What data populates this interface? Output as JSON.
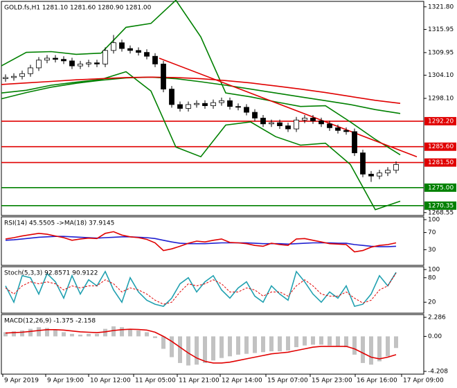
{
  "chart_data": [
    {
      "type": "candlestick",
      "title": "GOLD.fs,H1  1281.10 1281.60 1280.90 1281.00",
      "xlim": [
        0,
        152.5
      ],
      "ylim": [
        1267.8,
        1323.2
      ],
      "yticks": [
        {
          "value": 1321.8,
          "label": "1321.80"
        },
        {
          "value": 1315.95,
          "label": "1315.95"
        },
        {
          "value": 1309.95,
          "label": "1309.95"
        },
        {
          "value": 1304.1,
          "label": "1304.10"
        },
        {
          "value": 1298.1,
          "label": "1298.10"
        },
        {
          "value": 1268.55,
          "label": "1268.55"
        }
      ],
      "candles": {
        "x": [
          1.5,
          4.5,
          7.5,
          10.5,
          13.5,
          16.5,
          19.5,
          22.5,
          25.5,
          28.5,
          31.5,
          34.5,
          37.5,
          40.5,
          43.5,
          46.5,
          49.5,
          52.5,
          55.5,
          58.5,
          61.5,
          64.5,
          67.5,
          70.5,
          73.5,
          76.5,
          79.5,
          82.5,
          85.5,
          88.5,
          91.5,
          94.5,
          97.5,
          100.5,
          103.5,
          106.5,
          109.5,
          112.5,
          115.5,
          118.5,
          121.5,
          124.5,
          127.5,
          130.5,
          133.5,
          136.5,
          139.5,
          142.5
        ],
        "open": [
          1303.2,
          1303.5,
          1303.8,
          1304.5,
          1306.0,
          1308.0,
          1308.5,
          1308.2,
          1307.8,
          1306.5,
          1307.0,
          1307.3,
          1307.0,
          1310.5,
          1312.5,
          1311.0,
          1310.5,
          1310.0,
          1309.0,
          1307.0,
          1300.5,
          1296.5,
          1295.5,
          1296.5,
          1296.8,
          1296.2,
          1297.0,
          1297.5,
          1296.0,
          1295.8,
          1294.5,
          1293.0,
          1291.5,
          1291.8,
          1291.0,
          1290.2,
          1292.5,
          1293.0,
          1292.3,
          1291.5,
          1290.5,
          1289.8,
          1289.5,
          1284.0,
          1278.5,
          1278.0,
          1278.8,
          1279.5
        ],
        "high": [
          1304.3,
          1304.6,
          1305.3,
          1306.8,
          1308.8,
          1309.3,
          1309.3,
          1309.0,
          1308.6,
          1307.8,
          1308.1,
          1308.1,
          1311.3,
          1314.5,
          1313.3,
          1311.8,
          1311.3,
          1310.8,
          1309.8,
          1307.8,
          1301.3,
          1297.3,
          1297.3,
          1297.6,
          1297.6,
          1297.8,
          1298.3,
          1298.3,
          1296.8,
          1296.6,
          1295.3,
          1293.8,
          1292.6,
          1292.6,
          1291.8,
          1293.3,
          1293.8,
          1293.8,
          1293.1,
          1292.3,
          1291.3,
          1290.6,
          1290.3,
          1284.8,
          1279.3,
          1279.6,
          1280.3,
          1281.8
        ],
        "low": [
          1302.4,
          1302.7,
          1303.0,
          1303.7,
          1305.2,
          1307.2,
          1307.4,
          1307.0,
          1305.7,
          1305.7,
          1306.2,
          1306.2,
          1306.2,
          1309.7,
          1310.2,
          1309.7,
          1309.2,
          1308.2,
          1306.2,
          1299.7,
          1295.7,
          1294.7,
          1294.7,
          1295.7,
          1295.4,
          1295.4,
          1296.2,
          1295.2,
          1295.0,
          1293.7,
          1292.2,
          1290.7,
          1290.7,
          1290.2,
          1289.4,
          1289.4,
          1291.7,
          1291.5,
          1290.7,
          1289.7,
          1289.0,
          1288.7,
          1283.2,
          1277.7,
          1276.5,
          1277.2,
          1278.0,
          1278.7
        ],
        "close": [
          1303.5,
          1303.8,
          1304.5,
          1306.0,
          1308.0,
          1308.5,
          1308.2,
          1307.8,
          1306.5,
          1307.0,
          1307.3,
          1307.0,
          1310.5,
          1312.5,
          1311.0,
          1310.5,
          1310.0,
          1309.0,
          1307.0,
          1300.5,
          1296.5,
          1295.5,
          1296.5,
          1296.8,
          1296.2,
          1297.0,
          1297.5,
          1296.0,
          1295.8,
          1294.5,
          1293.0,
          1291.5,
          1291.8,
          1291.0,
          1290.2,
          1292.5,
          1293.0,
          1292.3,
          1291.5,
          1290.5,
          1289.8,
          1289.5,
          1284.0,
          1278.5,
          1278.0,
          1278.8,
          1279.5,
          1281.0
        ]
      },
      "series": [
        {
          "color": "#008000",
          "style": "line",
          "x": [
            0,
            9,
            18,
            27,
            36,
            45,
            54,
            63,
            72,
            81,
            90,
            99,
            108,
            117,
            126,
            135,
            144
          ],
          "values": [
            1306.5,
            1310.0,
            1310.2,
            1309.5,
            1309.8,
            1316.5,
            1317.5,
            1323.5,
            1314.0,
            1299.5,
            1298.5,
            1297.2,
            1296.0,
            1296.2,
            1292.0,
            1287.5,
            1283.5
          ]
        },
        {
          "color": "#008000",
          "style": "line",
          "x": [
            0,
            9,
            18,
            27,
            36,
            45,
            54,
            63,
            72,
            81,
            90,
            99,
            108,
            117,
            126,
            135,
            144
          ],
          "values": [
            1299.5,
            1300.2,
            1301.5,
            1302.3,
            1303.0,
            1305.0,
            1300.0,
            1285.5,
            1283.0,
            1291.2,
            1292.0,
            1288.2,
            1286.0,
            1286.5,
            1281.0,
            1269.3,
            1271.5
          ]
        },
        {
          "color": "#008000",
          "style": "line",
          "x": [
            0,
            9,
            18,
            27,
            36,
            45,
            54,
            63,
            72,
            81,
            90,
            99,
            108,
            117,
            126,
            135,
            144
          ],
          "values": [
            1298.0,
            1299.6,
            1301.0,
            1302.0,
            1302.8,
            1303.4,
            1303.6,
            1303.2,
            1302.4,
            1301.5,
            1300.5,
            1299.5,
            1298.5,
            1297.5,
            1296.5,
            1295.2,
            1294.2
          ]
        },
        {
          "color": "#e00000",
          "style": "line",
          "x": [
            0,
            9,
            18,
            27,
            36,
            45,
            54,
            63,
            72,
            81,
            90,
            99,
            108,
            117,
            126,
            135,
            144
          ],
          "values": [
            1301.7,
            1302.1,
            1302.5,
            1302.9,
            1303.2,
            1303.5,
            1303.6,
            1303.5,
            1303.2,
            1302.7,
            1302.1,
            1301.3,
            1300.5,
            1299.6,
            1298.6,
            1297.6,
            1296.8
          ]
        },
        {
          "color": "#e00000",
          "style": "line",
          "x": [
            57,
            150
          ],
          "values": [
            1308.5,
            1283.0
          ]
        }
      ],
      "levels": [
        {
          "value": 1292.2,
          "label": "1292.20",
          "color": "#e00000"
        },
        {
          "value": 1285.6,
          "label": "1285.60",
          "color": "#e00000"
        },
        {
          "value": 1281.5,
          "label": "1281.50",
          "color": "#e00000"
        },
        {
          "value": 1275.0,
          "label": "1275.00",
          "color": "#008000"
        },
        {
          "value": 1270.35,
          "label": "1270.35",
          "color": "#008000"
        }
      ]
    },
    {
      "type": "line",
      "title": "RSI(14) 45.5505  ->MA(18) 37.9145",
      "xlim": [
        0,
        152.5
      ],
      "ylim": [
        0,
        100
      ],
      "yticks": [
        100,
        70,
        30
      ],
      "x": [
        1.5,
        4.5,
        7.5,
        10.5,
        13.5,
        16.5,
        19.5,
        22.5,
        25.5,
        28.5,
        31.5,
        34.5,
        37.5,
        40.5,
        43.5,
        46.5,
        49.5,
        52.5,
        55.5,
        58.5,
        61.5,
        64.5,
        67.5,
        70.5,
        73.5,
        76.5,
        79.5,
        82.5,
        85.5,
        88.5,
        91.5,
        94.5,
        97.5,
        100.5,
        103.5,
        106.5,
        109.5,
        112.5,
        115.5,
        118.5,
        121.5,
        124.5,
        127.5,
        130.5,
        133.5,
        136.5,
        139.5,
        142.5
      ],
      "series": [
        {
          "color": "#1f1fd0",
          "style": "line",
          "values": [
            52,
            53,
            55,
            57,
            59,
            60,
            61,
            61,
            60,
            59,
            58,
            57,
            58,
            59,
            60,
            60,
            59,
            58,
            56,
            52,
            48,
            45,
            44,
            44,
            44,
            45,
            46,
            46,
            46,
            46,
            45,
            44,
            44,
            44,
            43,
            44,
            45,
            46,
            46,
            46,
            45,
            45,
            42,
            40,
            38,
            37,
            37,
            38
          ]
        },
        {
          "color": "#e00000",
          "style": "line",
          "values": [
            55,
            58,
            62,
            65,
            68,
            66,
            62,
            58,
            52,
            55,
            57,
            56,
            68,
            72,
            64,
            60,
            58,
            54,
            46,
            28,
            32,
            38,
            45,
            50,
            48,
            52,
            55,
            47,
            46,
            44,
            40,
            38,
            45,
            42,
            40,
            55,
            56,
            52,
            48,
            44,
            43,
            42,
            25,
            28,
            36,
            40,
            42,
            46
          ]
        }
      ]
    },
    {
      "type": "line",
      "title": "Stoch(5,3,3) 92.8571 90.9122",
      "xlim": [
        0,
        152.5
      ],
      "ylim": [
        0,
        100
      ],
      "yticks": [
        100,
        80,
        20
      ],
      "x": [
        1.5,
        4.5,
        7.5,
        10.5,
        13.5,
        16.5,
        19.5,
        22.5,
        25.5,
        28.5,
        31.5,
        34.5,
        37.5,
        40.5,
        43.5,
        46.5,
        49.5,
        52.5,
        55.5,
        58.5,
        61.5,
        64.5,
        67.5,
        70.5,
        73.5,
        76.5,
        79.5,
        82.5,
        85.5,
        88.5,
        91.5,
        94.5,
        97.5,
        100.5,
        103.5,
        106.5,
        109.5,
        112.5,
        115.5,
        118.5,
        121.5,
        124.5,
        127.5,
        130.5,
        133.5,
        136.5,
        139.5,
        142.5
      ],
      "series": [
        {
          "color": "#20a0b0",
          "style": "line",
          "values": [
            60,
            20,
            85,
            80,
            40,
            90,
            70,
            30,
            85,
            40,
            75,
            60,
            95,
            50,
            20,
            80,
            45,
            25,
            15,
            10,
            30,
            65,
            80,
            45,
            70,
            85,
            50,
            30,
            55,
            70,
            35,
            20,
            60,
            40,
            25,
            95,
            70,
            40,
            20,
            45,
            30,
            60,
            10,
            15,
            40,
            85,
            60,
            93
          ]
        },
        {
          "color": "#e00000",
          "style": "dashed",
          "values": [
            55,
            40,
            60,
            70,
            65,
            70,
            65,
            50,
            60,
            55,
            60,
            60,
            75,
            65,
            45,
            55,
            50,
            40,
            25,
            15,
            20,
            45,
            65,
            60,
            65,
            75,
            65,
            45,
            45,
            55,
            50,
            35,
            45,
            45,
            35,
            60,
            75,
            60,
            40,
            35,
            35,
            45,
            30,
            18,
            25,
            50,
            60,
            91
          ]
        }
      ]
    },
    {
      "type": "macd",
      "title": "MACD(12,26,9) -1.375 -2.158",
      "xlim": [
        0,
        152.5
      ],
      "ylim": [
        -4.208,
        2.286
      ],
      "yticks": [
        2.286,
        {
          "value": 0,
          "label": "0.00"
        },
        -4.208
      ],
      "xticks": [
        {
          "value": 0.5,
          "label": "9 Apr 2019"
        },
        {
          "value": 16,
          "label": "9 Apr 19:00"
        },
        {
          "value": 31.5,
          "label": "10 Apr 12:00"
        },
        {
          "value": 47.75,
          "label": "11 Apr 05:00"
        },
        {
          "value": 63.5,
          "label": "11 Apr 21:00"
        },
        {
          "value": 79,
          "label": "12 Apr 14:00"
        },
        {
          "value": 95.5,
          "label": "15 Apr 07:00"
        },
        {
          "value": 111.5,
          "label": "15 Apr 23:00"
        },
        {
          "value": 127.75,
          "label": "16 Apr 16:00"
        },
        {
          "value": 144.5,
          "label": "17 Apr 09:00"
        }
      ],
      "x": [
        1.5,
        4.5,
        7.5,
        10.5,
        13.5,
        16.5,
        19.5,
        22.5,
        25.5,
        28.5,
        31.5,
        34.5,
        37.5,
        40.5,
        43.5,
        46.5,
        49.5,
        52.5,
        55.5,
        58.5,
        61.5,
        64.5,
        67.5,
        70.5,
        73.5,
        76.5,
        79.5,
        82.5,
        85.5,
        88.5,
        91.5,
        94.5,
        97.5,
        100.5,
        103.5,
        106.5,
        109.5,
        112.5,
        115.5,
        118.5,
        121.5,
        124.5,
        127.5,
        130.5,
        133.5,
        136.5,
        139.5,
        142.5
      ],
      "series": [
        {
          "color": "#a8a8a8",
          "style": "bar",
          "values": [
            0.5,
            0.6,
            0.7,
            0.9,
            1.1,
            1.0,
            0.8,
            0.5,
            0.3,
            0.2,
            0.3,
            0.3,
            0.9,
            1.2,
            1.1,
            0.9,
            0.7,
            0.5,
            -0.2,
            -1.5,
            -2.5,
            -3.2,
            -3.5,
            -3.4,
            -3.2,
            -2.9,
            -2.6,
            -2.4,
            -2.2,
            -2.1,
            -2.0,
            -1.9,
            -1.8,
            -1.8,
            -1.7,
            -1.3,
            -1.1,
            -1.0,
            -1.0,
            -1.1,
            -1.2,
            -1.3,
            -2.2,
            -3.2,
            -3.4,
            -3.0,
            -2.4,
            -1.4
          ]
        },
        {
          "color": "#e00000",
          "style": "line",
          "values": [
            0.4,
            0.45,
            0.5,
            0.6,
            0.7,
            0.8,
            0.8,
            0.75,
            0.65,
            0.55,
            0.5,
            0.45,
            0.55,
            0.7,
            0.8,
            0.85,
            0.82,
            0.75,
            0.5,
            0.0,
            -0.6,
            -1.3,
            -2.0,
            -2.6,
            -3.0,
            -3.2,
            -3.2,
            -3.1,
            -2.9,
            -2.7,
            -2.5,
            -2.3,
            -2.1,
            -2.0,
            -1.9,
            -1.7,
            -1.5,
            -1.3,
            -1.2,
            -1.2,
            -1.2,
            -1.2,
            -1.5,
            -2.0,
            -2.5,
            -2.7,
            -2.5,
            -2.2
          ]
        }
      ]
    }
  ]
}
